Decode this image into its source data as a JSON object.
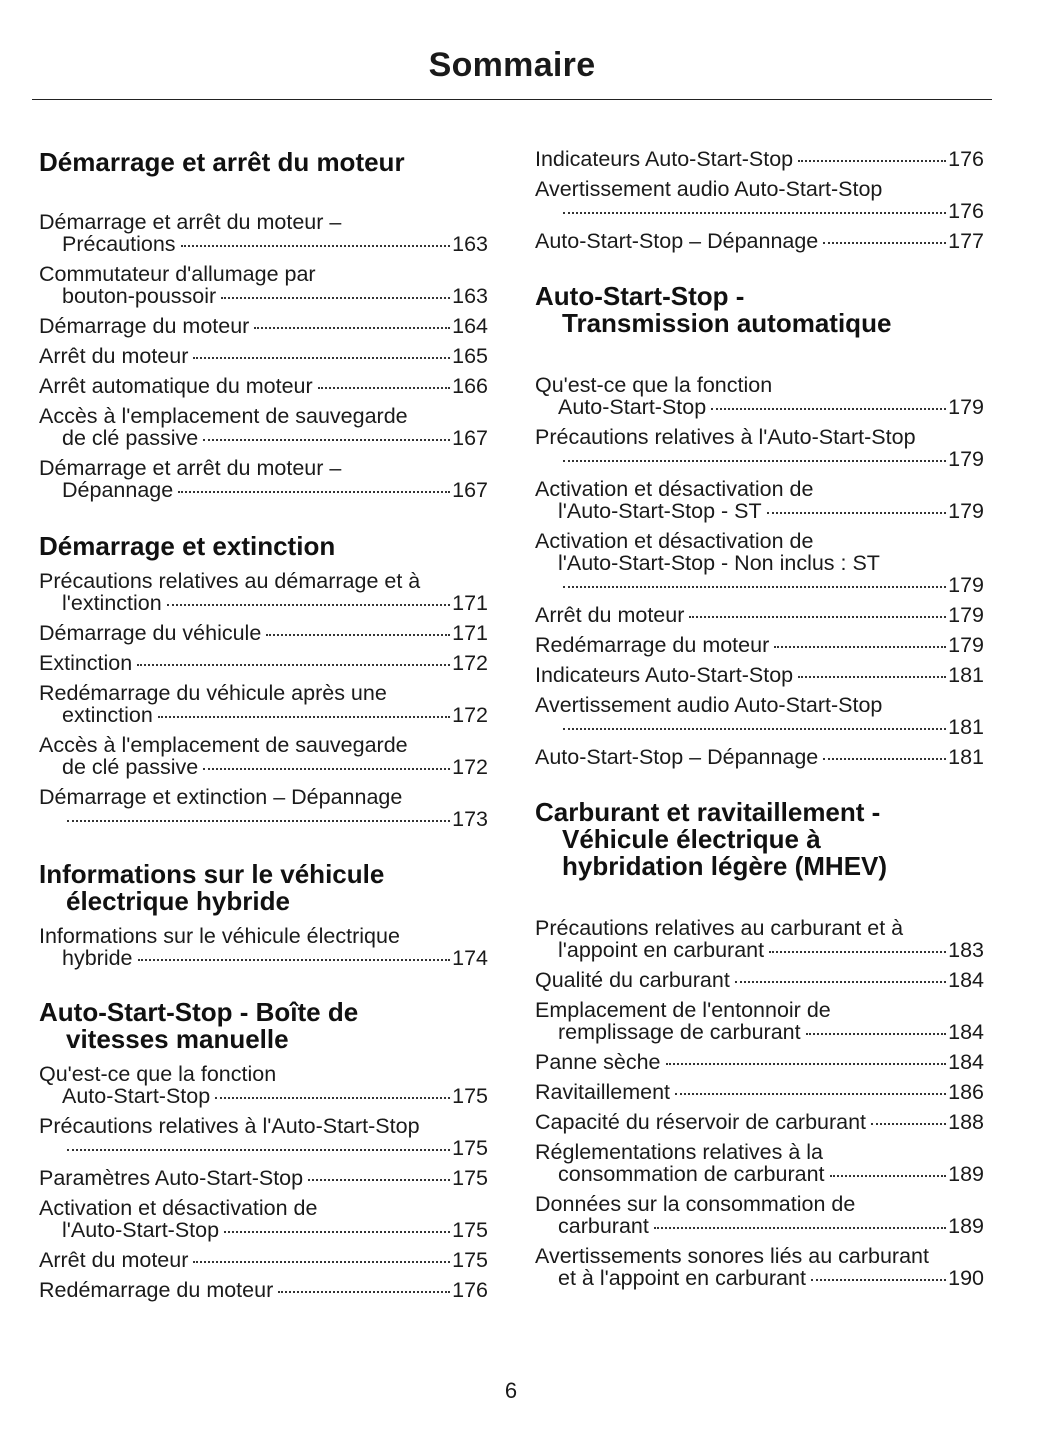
{
  "title": "Sommaire",
  "page_number": "6",
  "columns": [
    {
      "sections": [
        {
          "heading": [
            "Démarrage et arrêt du moteur"
          ],
          "entries": [
            {
              "lines": [
                "Démarrage et arrêt du moteur –",
                "Précautions"
              ],
              "page": "163"
            },
            {
              "lines": [
                "Commutateur d'allumage par",
                "bouton-poussoir"
              ],
              "page": "163"
            },
            {
              "lines": [
                "Démarrage du moteur"
              ],
              "page": "164"
            },
            {
              "lines": [
                "Arrêt du moteur"
              ],
              "page": "165"
            },
            {
              "lines": [
                "Arrêt automatique du moteur"
              ],
              "page": "166"
            },
            {
              "lines": [
                "Accès à l'emplacement de sauvegarde",
                "de clé passive"
              ],
              "page": "167"
            },
            {
              "lines": [
                "Démarrage et arrêt du moteur –",
                "Dépannage"
              ],
              "page": "167"
            }
          ]
        },
        {
          "heading": [
            "Démarrage et extinction"
          ],
          "entries": [
            {
              "lines": [
                "Précautions relatives au démarrage et à",
                "l'extinction"
              ],
              "page": "171"
            },
            {
              "lines": [
                "Démarrage du véhicule"
              ],
              "page": "171"
            },
            {
              "lines": [
                "Extinction"
              ],
              "page": "172"
            },
            {
              "lines": [
                "Redémarrage du véhicule après une",
                "extinction"
              ],
              "page": "172"
            },
            {
              "lines": [
                "Accès à l'emplacement de sauvegarde",
                "de clé passive"
              ],
              "page": "172"
            },
            {
              "lines": [
                "Démarrage et extinction – Dépannage",
                ""
              ],
              "page": "173"
            }
          ]
        },
        {
          "heading": [
            "Informations sur le véhicule",
            "électrique hybride"
          ],
          "entries": [
            {
              "lines": [
                "Informations sur le véhicule électrique",
                "hybride"
              ],
              "page": "174"
            }
          ]
        },
        {
          "heading": [
            "Auto-Start-Stop - Boîte de",
            "vitesses manuelle"
          ],
          "entries": [
            {
              "lines": [
                "Qu'est-ce que la fonction",
                "Auto-Start-Stop"
              ],
              "page": "175"
            },
            {
              "lines": [
                "Précautions relatives à l'Auto-Start-Stop",
                ""
              ],
              "page": "175"
            },
            {
              "lines": [
                "Paramètres Auto-Start-Stop"
              ],
              "page": "175"
            },
            {
              "lines": [
                "Activation et désactivation de",
                "l'Auto-Start-Stop"
              ],
              "page": "175"
            },
            {
              "lines": [
                "Arrêt du moteur"
              ],
              "page": "175"
            },
            {
              "lines": [
                "Redémarrage du moteur"
              ],
              "page": "176"
            }
          ]
        }
      ]
    },
    {
      "sections": [
        {
          "heading": [],
          "entries": [
            {
              "lines": [
                "Indicateurs Auto-Start-Stop"
              ],
              "page": "176"
            },
            {
              "lines": [
                "Avertissement audio Auto-Start-Stop",
                ""
              ],
              "page": "176"
            },
            {
              "lines": [
                "Auto-Start-Stop – Dépannage"
              ],
              "page": "177"
            }
          ]
        },
        {
          "heading": [
            "Auto-Start-Stop -",
            "Transmission automatique"
          ],
          "entries": [
            {
              "lines": [
                "Qu'est-ce que la fonction",
                "Auto-Start-Stop"
              ],
              "page": "179"
            },
            {
              "lines": [
                "Précautions relatives à l'Auto-Start-Stop",
                ""
              ],
              "page": "179"
            },
            {
              "lines": [
                "Activation et désactivation de",
                "l'Auto-Start-Stop - ST"
              ],
              "page": "179"
            },
            {
              "lines": [
                "Activation et désactivation de",
                "l'Auto-Start-Stop - Non inclus : ST",
                ""
              ],
              "page": "179"
            },
            {
              "lines": [
                "Arrêt du moteur"
              ],
              "page": "179"
            },
            {
              "lines": [
                "Redémarrage du moteur"
              ],
              "page": "179"
            },
            {
              "lines": [
                "Indicateurs Auto-Start-Stop"
              ],
              "page": "181"
            },
            {
              "lines": [
                "Avertissement audio Auto-Start-Stop",
                ""
              ],
              "page": "181"
            },
            {
              "lines": [
                "Auto-Start-Stop – Dépannage"
              ],
              "page": "181"
            }
          ]
        },
        {
          "heading": [
            "Carburant et ravitaillement -",
            "Véhicule électrique à",
            "hybridation légère (MHEV)"
          ],
          "entries": [
            {
              "lines": [
                "Précautions relatives au carburant et à",
                "l'appoint en carburant"
              ],
              "page": "183"
            },
            {
              "lines": [
                "Qualité du carburant"
              ],
              "page": "184"
            },
            {
              "lines": [
                "Emplacement de l'entonnoir de",
                "remplissage de carburant"
              ],
              "page": "184"
            },
            {
              "lines": [
                "Panne sèche"
              ],
              "page": "184"
            },
            {
              "lines": [
                "Ravitaillement"
              ],
              "page": "186"
            },
            {
              "lines": [
                "Capacité du réservoir de carburant"
              ],
              "page": "188"
            },
            {
              "lines": [
                "Réglementations relatives à la",
                "consommation de carburant"
              ],
              "page": "189"
            },
            {
              "lines": [
                "Données sur la consommation de",
                "carburant"
              ],
              "page": "189"
            },
            {
              "lines": [
                "Avertissements sonores liés au carburant",
                "et à l'appoint en carburant"
              ],
              "page": "190"
            }
          ]
        }
      ]
    }
  ]
}
